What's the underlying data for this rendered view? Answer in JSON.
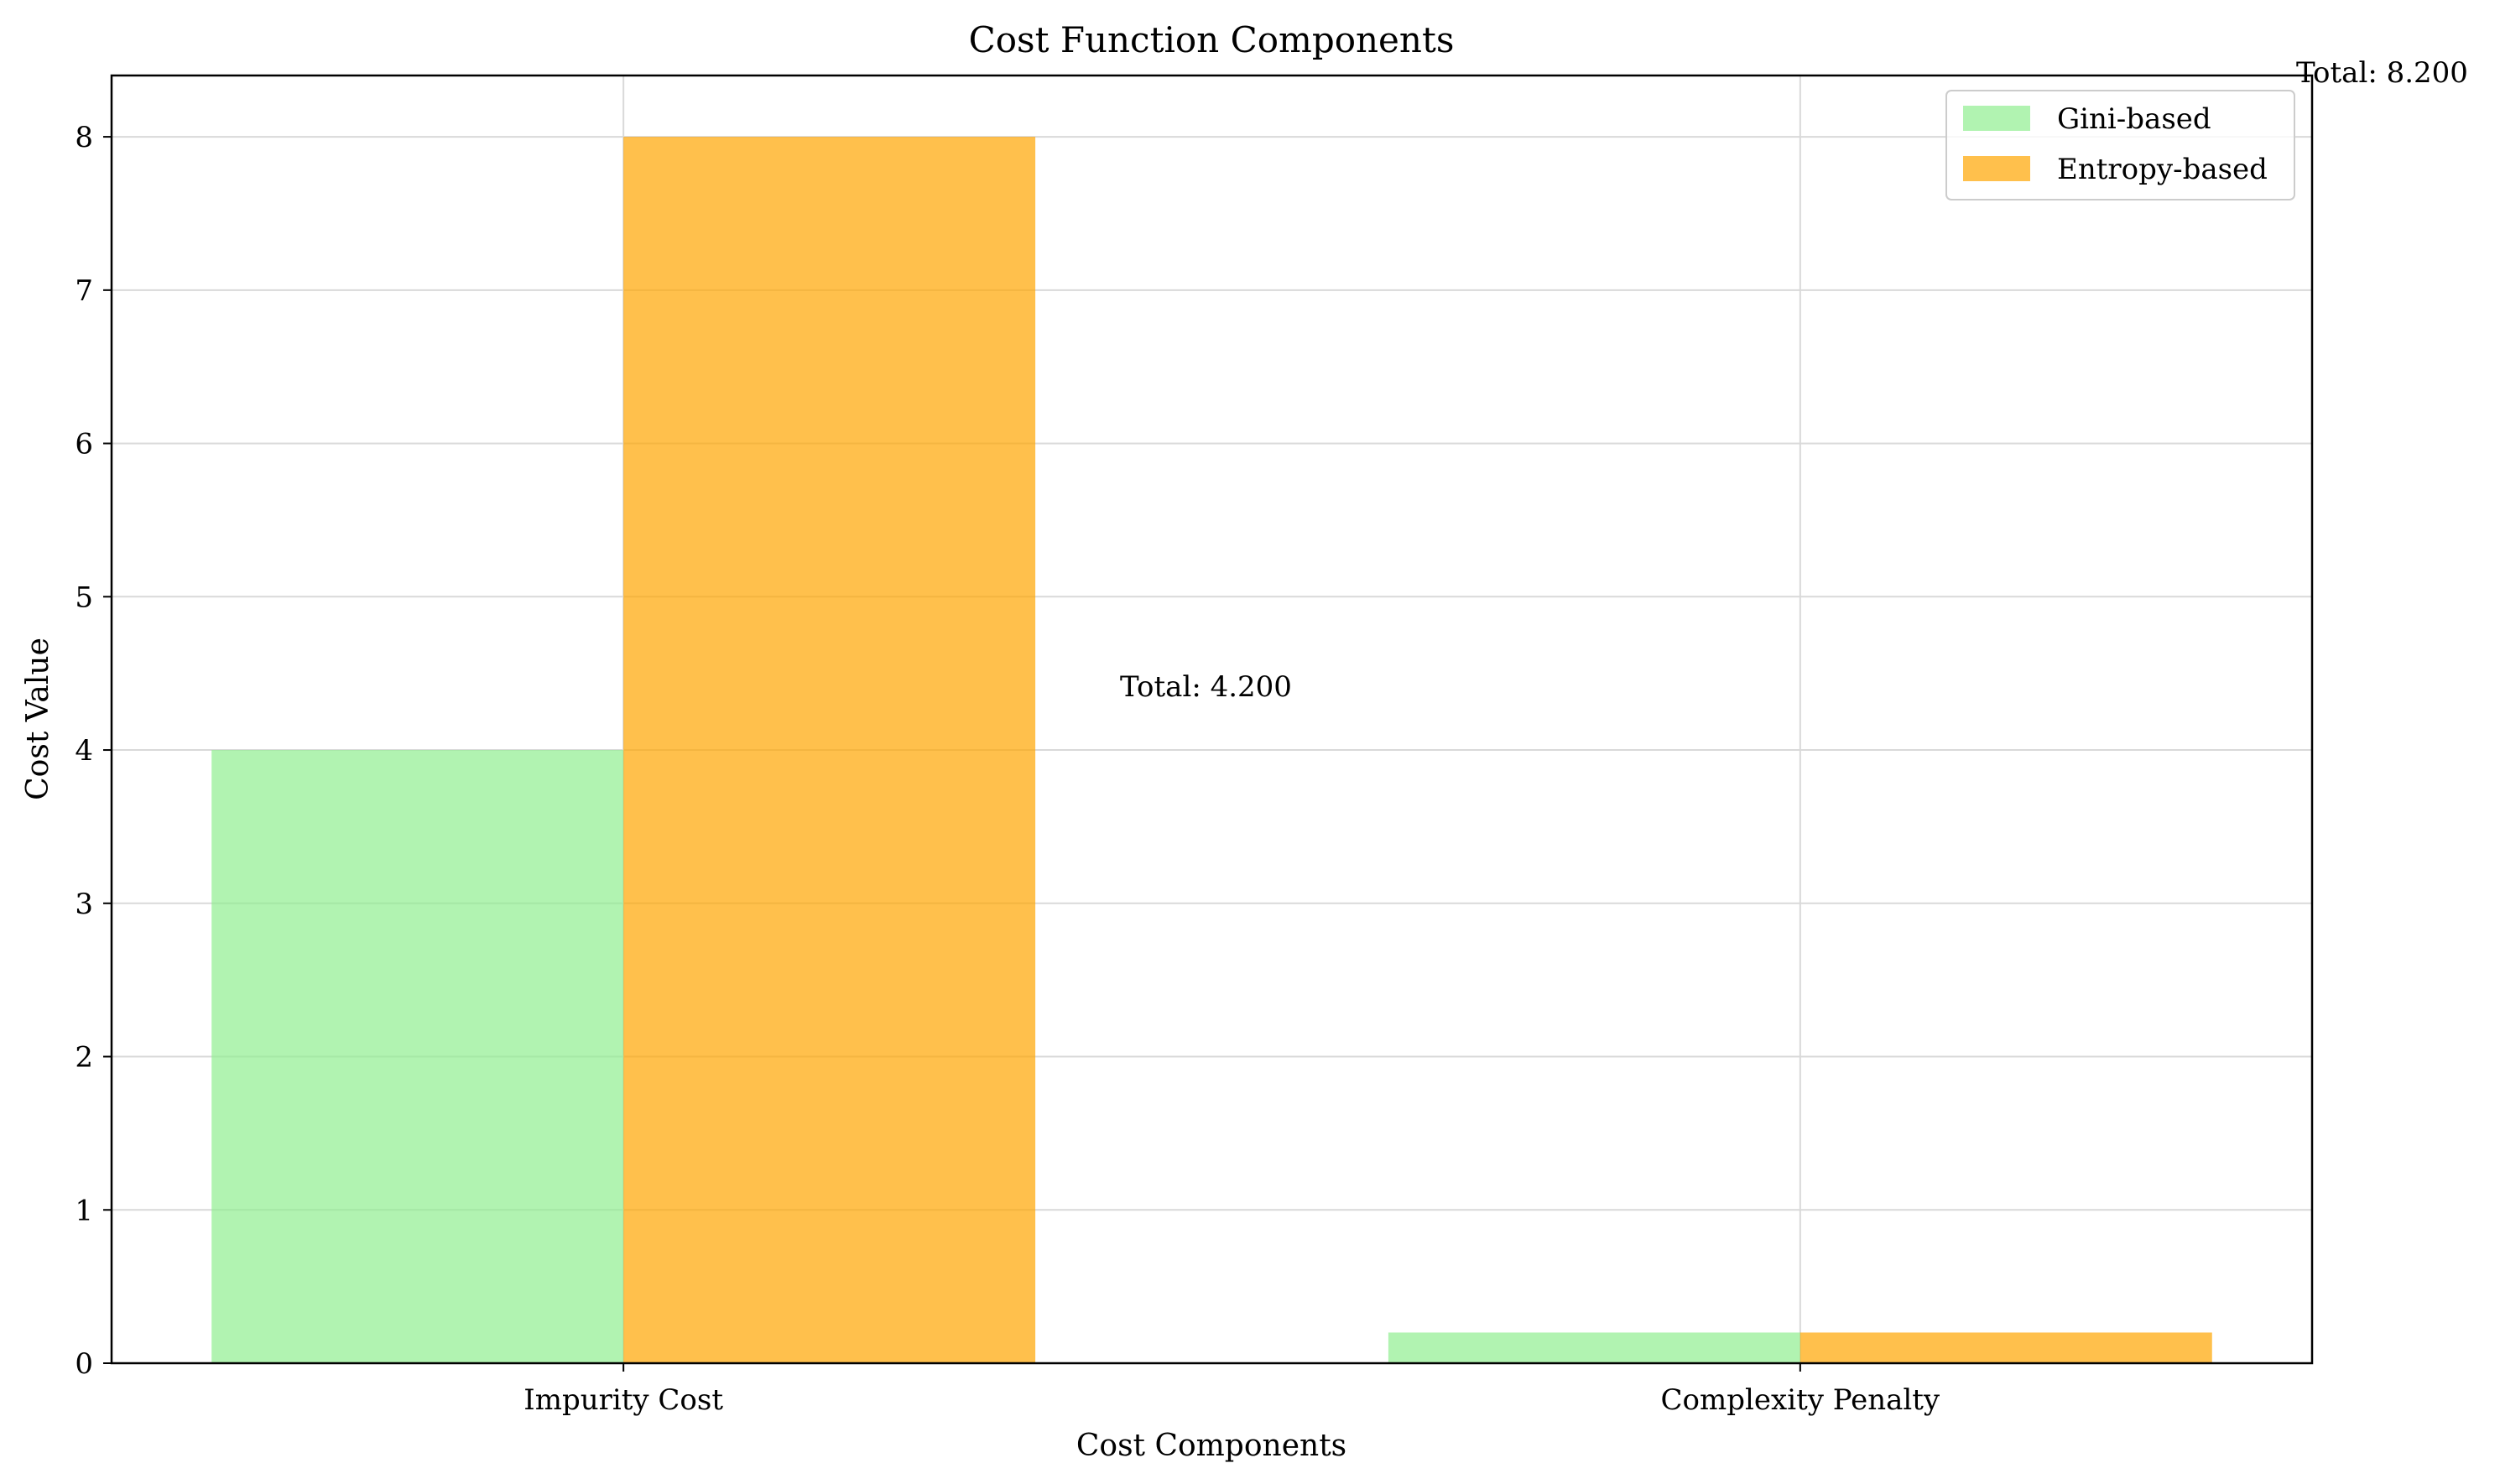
{
  "chart_data": {
    "type": "bar",
    "title": "Cost Function Components",
    "xlabel": "Cost Components",
    "ylabel": "Cost Value",
    "categories": [
      "Impurity Cost",
      "Complexity Penalty"
    ],
    "series": [
      {
        "name": "Gini-based",
        "values": [
          4.0,
          0.2
        ],
        "color": "#90EE90"
      },
      {
        "name": "Entropy-based",
        "values": [
          8.0,
          0.2
        ],
        "color": "#FFA500"
      }
    ],
    "ylim": [
      0,
      8.4
    ],
    "yticks": [
      "0",
      "1",
      "2",
      "3",
      "4",
      "5",
      "6",
      "7",
      "8"
    ],
    "grid": true,
    "legend_position": "top-right",
    "annotations": [
      {
        "text": "Total: 4.200",
        "color": "#008000"
      },
      {
        "text": "Total: 8.200",
        "color": "#FFA500"
      }
    ]
  }
}
